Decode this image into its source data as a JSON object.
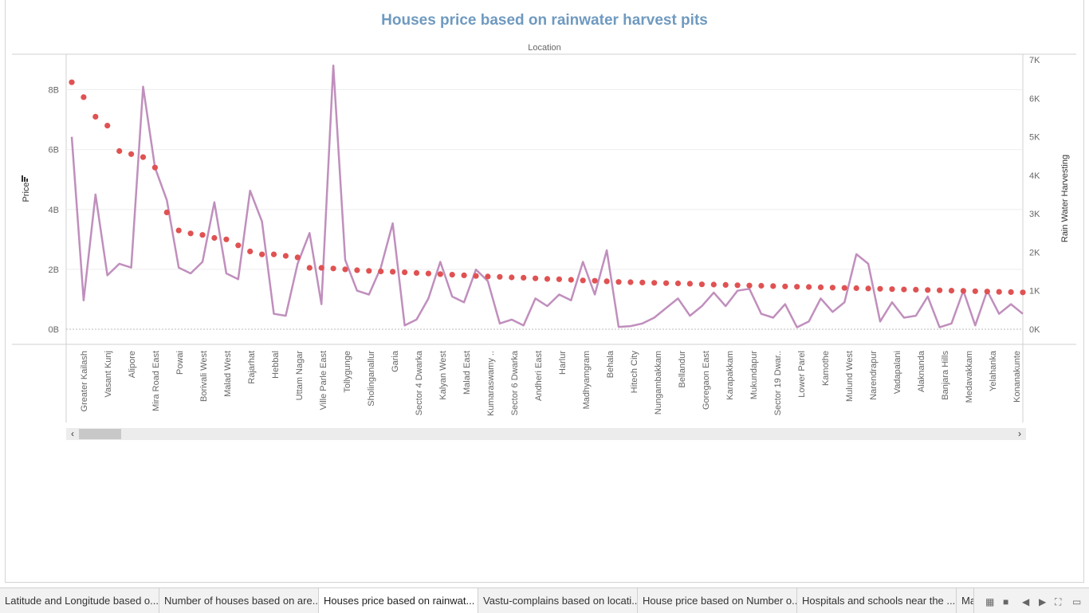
{
  "title": "Houses price based on rainwater harvest pits",
  "header": "Location",
  "tabs": [
    {
      "label": "Latitude and Longitude based o..."
    },
    {
      "label": "Number of houses based on are..."
    },
    {
      "label": "Houses price based on rainwat...",
      "active": true
    },
    {
      "label": "Vastu-complains based on locati..."
    },
    {
      "label": "House price based on Number o..."
    },
    {
      "label": "Hospitals and schools near the ..."
    },
    {
      "label": "Ma"
    }
  ],
  "scrollbar": {
    "left_arrow": "‹",
    "right_arrow": "›"
  },
  "controls": {
    "gallery": "▦",
    "stop": "■",
    "prev": "◀",
    "next": "▶",
    "fullscreen": "⛶",
    "present": "▭"
  },
  "colors": {
    "price_dots": "#e05252",
    "rwh_line": "#c08fbd",
    "title": "#6f9ac0"
  },
  "chart_data": {
    "type": "line",
    "title": "Houses price based on rainwater harvest pits",
    "xlabel": "Location",
    "ylabel": "Price",
    "y2label": "Rain Water Harvesting",
    "y_left": {
      "min": 0,
      "max": 9.0,
      "ticks": [
        0,
        2,
        4,
        6,
        8
      ],
      "tick_labels": [
        "0B",
        "2B",
        "4B",
        "6B",
        "8B"
      ]
    },
    "y_right": {
      "min": 0,
      "max": 7000,
      "ticks": [
        0,
        1000,
        2000,
        3000,
        4000,
        5000,
        6000,
        7000
      ],
      "tick_labels": [
        "0K",
        "1K",
        "2K",
        "3K",
        "4K",
        "5K",
        "6K",
        "7K"
      ]
    },
    "x_labels": [
      "Greater Kailash",
      "Vasant Kunj",
      "Alipore",
      "Mira Road East",
      "Powai",
      "Borivali West",
      "Malad West",
      "Rajarhat",
      "Hebbal",
      "Uttam Nagar",
      "Ville Parle East",
      "Tollygunge",
      "Sholinganallur",
      "Garia",
      "Sector 4 Dwarka",
      "Kalyan West",
      "Malad East",
      "Kumaraswamy ..",
      "Sector 6 Dwarka",
      "Andheri East",
      "Harlur",
      "Madhyamgram",
      "Behala",
      "Hitech City",
      "Nungambakkam",
      "Bellandur",
      "Goregaon East",
      "Karapakkam",
      "Mukundapur",
      "Sector 19 Dwar..",
      "Lower Parel",
      "Kamothe",
      "Mulund West",
      "Narendrapur",
      "Vadapalani",
      "Alaknanda",
      "Banjara Hills",
      "Medavakkam",
      "Yelahanka",
      "Konanakunte"
    ],
    "series": [
      {
        "name": "Price",
        "kind": "dots",
        "unit": "B",
        "values": [
          8.25,
          7.75,
          7.1,
          6.8,
          5.95,
          5.85,
          5.75,
          5.4,
          3.9,
          3.3,
          3.2,
          3.15,
          3.05,
          3.0,
          2.8,
          2.6,
          2.5,
          2.5,
          2.45,
          2.4,
          2.05,
          2.05,
          2.03,
          2.0,
          1.97,
          1.95,
          1.93,
          1.92,
          1.9,
          1.88,
          1.86,
          1.84,
          1.82,
          1.8,
          1.78,
          1.76,
          1.75,
          1.73,
          1.72,
          1.7,
          1.68,
          1.67,
          1.65,
          1.63,
          1.62,
          1.6,
          1.58,
          1.57,
          1.56,
          1.55,
          1.54,
          1.53,
          1.52,
          1.5,
          1.49,
          1.48,
          1.47,
          1.46,
          1.45,
          1.44,
          1.43,
          1.42,
          1.41,
          1.4,
          1.39,
          1.38,
          1.37,
          1.36,
          1.35,
          1.34,
          1.33,
          1.32,
          1.31,
          1.3,
          1.29,
          1.28,
          1.27,
          1.26,
          1.25,
          1.24,
          1.23
        ]
      },
      {
        "name": "Rain Water Harvesting",
        "kind": "line",
        "unit": "K",
        "values": [
          5000,
          750,
          3500,
          1400,
          1700,
          1600,
          6300,
          4200,
          3350,
          1600,
          1450,
          1750,
          3300,
          1450,
          1300,
          3600,
          2800,
          400,
          350,
          1700,
          2500,
          650,
          6850,
          1800,
          1000,
          900,
          1600,
          2750,
          100,
          250,
          800,
          1750,
          850,
          700,
          1550,
          1250,
          150,
          250,
          100,
          800,
          600,
          900,
          750,
          1750,
          900,
          2050,
          60,
          80,
          150,
          300,
          550,
          800,
          350,
          600,
          950,
          600,
          1000,
          1050,
          400,
          300,
          650,
          50,
          200,
          800,
          450,
          700,
          1950,
          1700,
          200,
          700,
          300,
          350,
          850,
          50,
          150,
          1000,
          100,
          1000,
          400,
          650,
          400
        ]
      }
    ]
  }
}
